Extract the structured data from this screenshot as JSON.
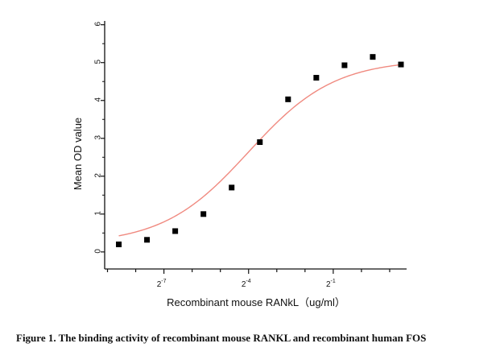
{
  "chart_data": {
    "type": "scatter",
    "xlabel": "Recombinant mouse RANkL（ug/ml）",
    "ylabel": "Mean OD value",
    "caption": "Figure 1. The binding activity of recombinant mouse RANKL and recombinant human FOS",
    "x_scale": "log2",
    "x_tick_labels": [
      {
        "base": "2",
        "exp": "-7",
        "log2": -7
      },
      {
        "base": "2",
        "exp": "-4",
        "log2": -4
      },
      {
        "base": "2",
        "exp": "-1",
        "log2": -1
      }
    ],
    "xlim_log2": [
      -9.1,
      1.6
    ],
    "y_ticks": [
      "0",
      "1",
      "2",
      "3",
      "4",
      "5",
      "6"
    ],
    "ylim": [
      -0.45,
      6.1
    ],
    "grid": false,
    "series": [
      {
        "marker": "square",
        "marker_color": "#000000",
        "fit_color": "#f08a80",
        "points": [
          {
            "log2x": -8.6,
            "y": 0.2
          },
          {
            "log2x": -7.6,
            "y": 0.32
          },
          {
            "log2x": -6.6,
            "y": 0.55
          },
          {
            "log2x": -5.6,
            "y": 1.0
          },
          {
            "log2x": -4.6,
            "y": 1.7
          },
          {
            "log2x": -3.6,
            "y": 2.9
          },
          {
            "log2x": -2.6,
            "y": 4.03
          },
          {
            "log2x": -1.6,
            "y": 4.6
          },
          {
            "log2x": -0.6,
            "y": 4.93
          },
          {
            "log2x": 0.4,
            "y": 5.15
          },
          {
            "log2x": 1.4,
            "y": 4.95
          }
        ],
        "fit": {
          "bottom": 0.2,
          "top": 5.08,
          "ec50_log2": -4.0,
          "slope": 0.95
        }
      }
    ]
  }
}
